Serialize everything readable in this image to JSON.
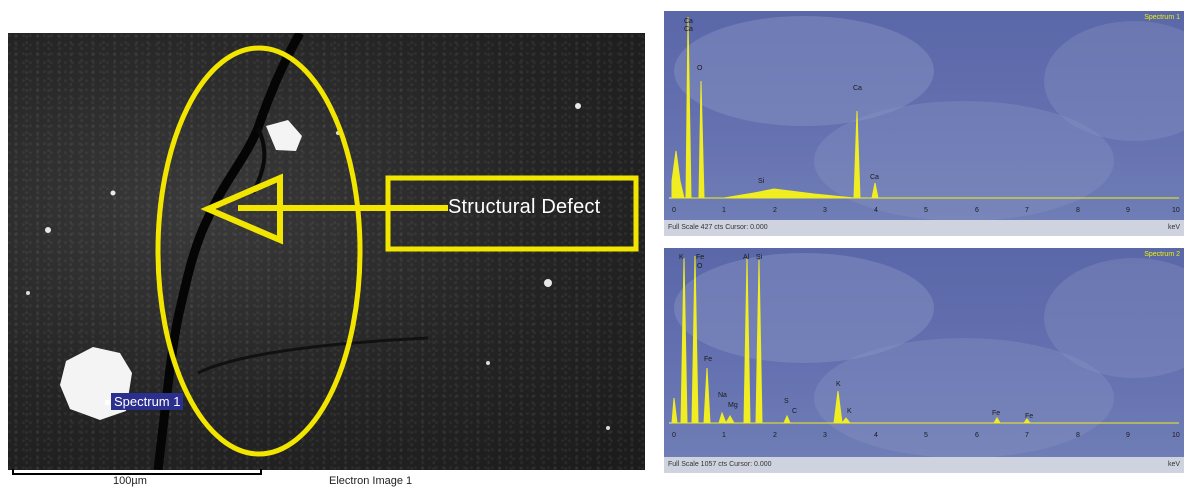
{
  "sem_image": {
    "spectrum_tag": "Spectrum 1",
    "annotation": "Structural Defect",
    "scale_label": "100µm",
    "caption": "Electron Image 1",
    "annotation_color": "#f2e600"
  },
  "spectra": [
    {
      "title": "Spectrum 1",
      "footer_text": "Full Scale 427 cts Cursor: 0.000",
      "unit": "keV",
      "x_ticks": [
        "0",
        "1",
        "2",
        "3",
        "4",
        "5",
        "6",
        "7",
        "8",
        "9",
        "10"
      ],
      "peak_labels": [
        "Ca",
        "Ca",
        "O",
        "Si",
        "Ca",
        "Ca"
      ]
    },
    {
      "title": "Spectrum 2",
      "footer_text": "Full Scale 1057 cts Cursor: 0.000",
      "unit": "keV",
      "x_ticks": [
        "0",
        "1",
        "2",
        "3",
        "4",
        "5",
        "6",
        "7",
        "8",
        "9",
        "10"
      ],
      "peak_labels": [
        "K",
        "Fe",
        "O",
        "Fe",
        "Na",
        "Mg",
        "Al",
        "Si",
        "S",
        "C",
        "K",
        "K",
        "Fe",
        "Fe"
      ]
    }
  ]
}
